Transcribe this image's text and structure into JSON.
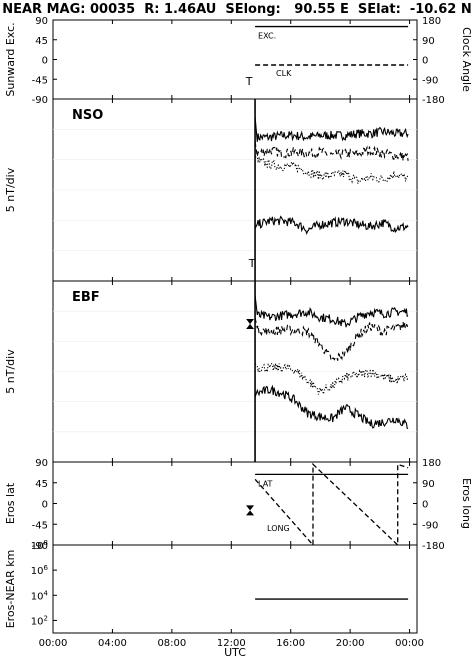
{
  "header": {
    "title": "NEAR MAG: 00035  R: 1.46AU  SElong:   90.55 E  SElat:  -10.62 N"
  },
  "chart_data": [
    {
      "type": "line",
      "panel": "sunward",
      "ylabel": "Sunward Exc.",
      "right_ylabel": "Clock Angle",
      "ylim": [
        -90,
        90
      ],
      "right_ylim": [
        -180,
        180
      ],
      "yticks": [
        "90",
        "45",
        "0",
        "-45",
        "-90"
      ],
      "right_yticks": [
        "180",
        "90",
        "0",
        "-90",
        "-180"
      ],
      "annotations": [
        "EXC.",
        "CLK",
        "T"
      ],
      "series": [
        {
          "name": "EXC.",
          "style": "solid",
          "x": [
            13.6,
            23.9
          ],
          "values": [
            75,
            75
          ]
        },
        {
          "name": "CLK",
          "style": "dashed",
          "axis": "right",
          "x": [
            13.6,
            23.9
          ],
          "values": [
            -25,
            -25
          ]
        }
      ]
    },
    {
      "type": "line",
      "panel": "NSO",
      "title": "NSO",
      "ylabel": "5 nT/div",
      "annotations": [
        "T"
      ],
      "series": [
        {
          "style": "solid",
          "values": [
            0.79,
            0.79,
            0.8,
            0.8,
            0.79,
            0.8,
            0.8,
            0.8,
            0.81,
            0.81,
            0.82,
            0.81,
            0.81
          ]
        },
        {
          "style": "dashed",
          "values": [
            0.7,
            0.72,
            0.7,
            0.71,
            0.7,
            0.71,
            0.69,
            0.7,
            0.7,
            0.72,
            0.7,
            0.69,
            0.68
          ]
        },
        {
          "style": "dotted",
          "values": [
            0.66,
            0.64,
            0.63,
            0.63,
            0.6,
            0.58,
            0.58,
            0.59,
            0.55,
            0.57,
            0.56,
            0.59,
            0.56
          ]
        },
        {
          "style": "solid",
          "values": [
            0.31,
            0.33,
            0.33,
            0.32,
            0.28,
            0.31,
            0.32,
            0.33,
            0.31,
            0.3,
            0.32,
            0.29,
            0.3
          ]
        }
      ]
    },
    {
      "type": "line",
      "panel": "EBF",
      "title": "EBF",
      "ylabel": "5 nT/div",
      "series": [
        {
          "style": "solid",
          "values": [
            0.81,
            0.8,
            0.81,
            0.82,
            0.83,
            0.8,
            0.79,
            0.76,
            0.8,
            0.83,
            0.82,
            0.83,
            0.83
          ]
        },
        {
          "style": "dashed",
          "values": [
            0.73,
            0.72,
            0.73,
            0.73,
            0.72,
            0.65,
            0.56,
            0.6,
            0.7,
            0.75,
            0.72,
            0.74,
            0.76
          ]
        },
        {
          "style": "dotted",
          "values": [
            0.52,
            0.52,
            0.52,
            0.51,
            0.45,
            0.39,
            0.42,
            0.47,
            0.48,
            0.5,
            0.47,
            0.45,
            0.47
          ]
        },
        {
          "style": "solid",
          "values": [
            0.38,
            0.4,
            0.38,
            0.34,
            0.27,
            0.25,
            0.24,
            0.3,
            0.26,
            0.21,
            0.22,
            0.24,
            0.2
          ]
        }
      ]
    },
    {
      "type": "line",
      "panel": "eros",
      "ylabel": "Eros lat",
      "right_ylabel": "Eros long",
      "ylim": [
        -90,
        90
      ],
      "right_ylim": [
        -180,
        180
      ],
      "yticks": [
        "90",
        "45",
        "0",
        "-45",
        "-90"
      ],
      "right_yticks": [
        "180",
        "90",
        "0",
        "-90",
        "-180"
      ],
      "annotations": [
        "LAT",
        "LONG"
      ],
      "series": [
        {
          "name": "LAT",
          "style": "solid",
          "x": [
            13.6,
            23.9
          ],
          "values": [
            63,
            63
          ]
        },
        {
          "name": "LONG",
          "style": "dashed",
          "axis": "right",
          "x": [
            13.6,
            17.5,
            17.5,
            23.2,
            23.2,
            23.9
          ],
          "values": [
            105,
            -180,
            170,
            -180,
            170,
            155
          ]
        }
      ]
    },
    {
      "type": "line",
      "panel": "distance",
      "ylabel": "Eros-NEAR km",
      "yscale": "log",
      "ylim": [
        10,
        100000000
      ],
      "yticks": [
        "10^8",
        "10^6",
        "10^4",
        "10^2"
      ],
      "series": [
        {
          "style": "solid",
          "x": [
            13.6,
            23.9
          ],
          "values": [
            5000,
            5000
          ]
        }
      ]
    }
  ],
  "x_axis": {
    "label": "UTC",
    "xlim": [
      0,
      24.5
    ],
    "ticks": [
      "00:00",
      "04:00",
      "08:00",
      "12:00",
      "16:00",
      "20:00",
      "00:00"
    ],
    "tick_hours": [
      0,
      4,
      8,
      12,
      16,
      20,
      24
    ]
  },
  "marker_hour": 13.6,
  "left_marker_text": "T"
}
